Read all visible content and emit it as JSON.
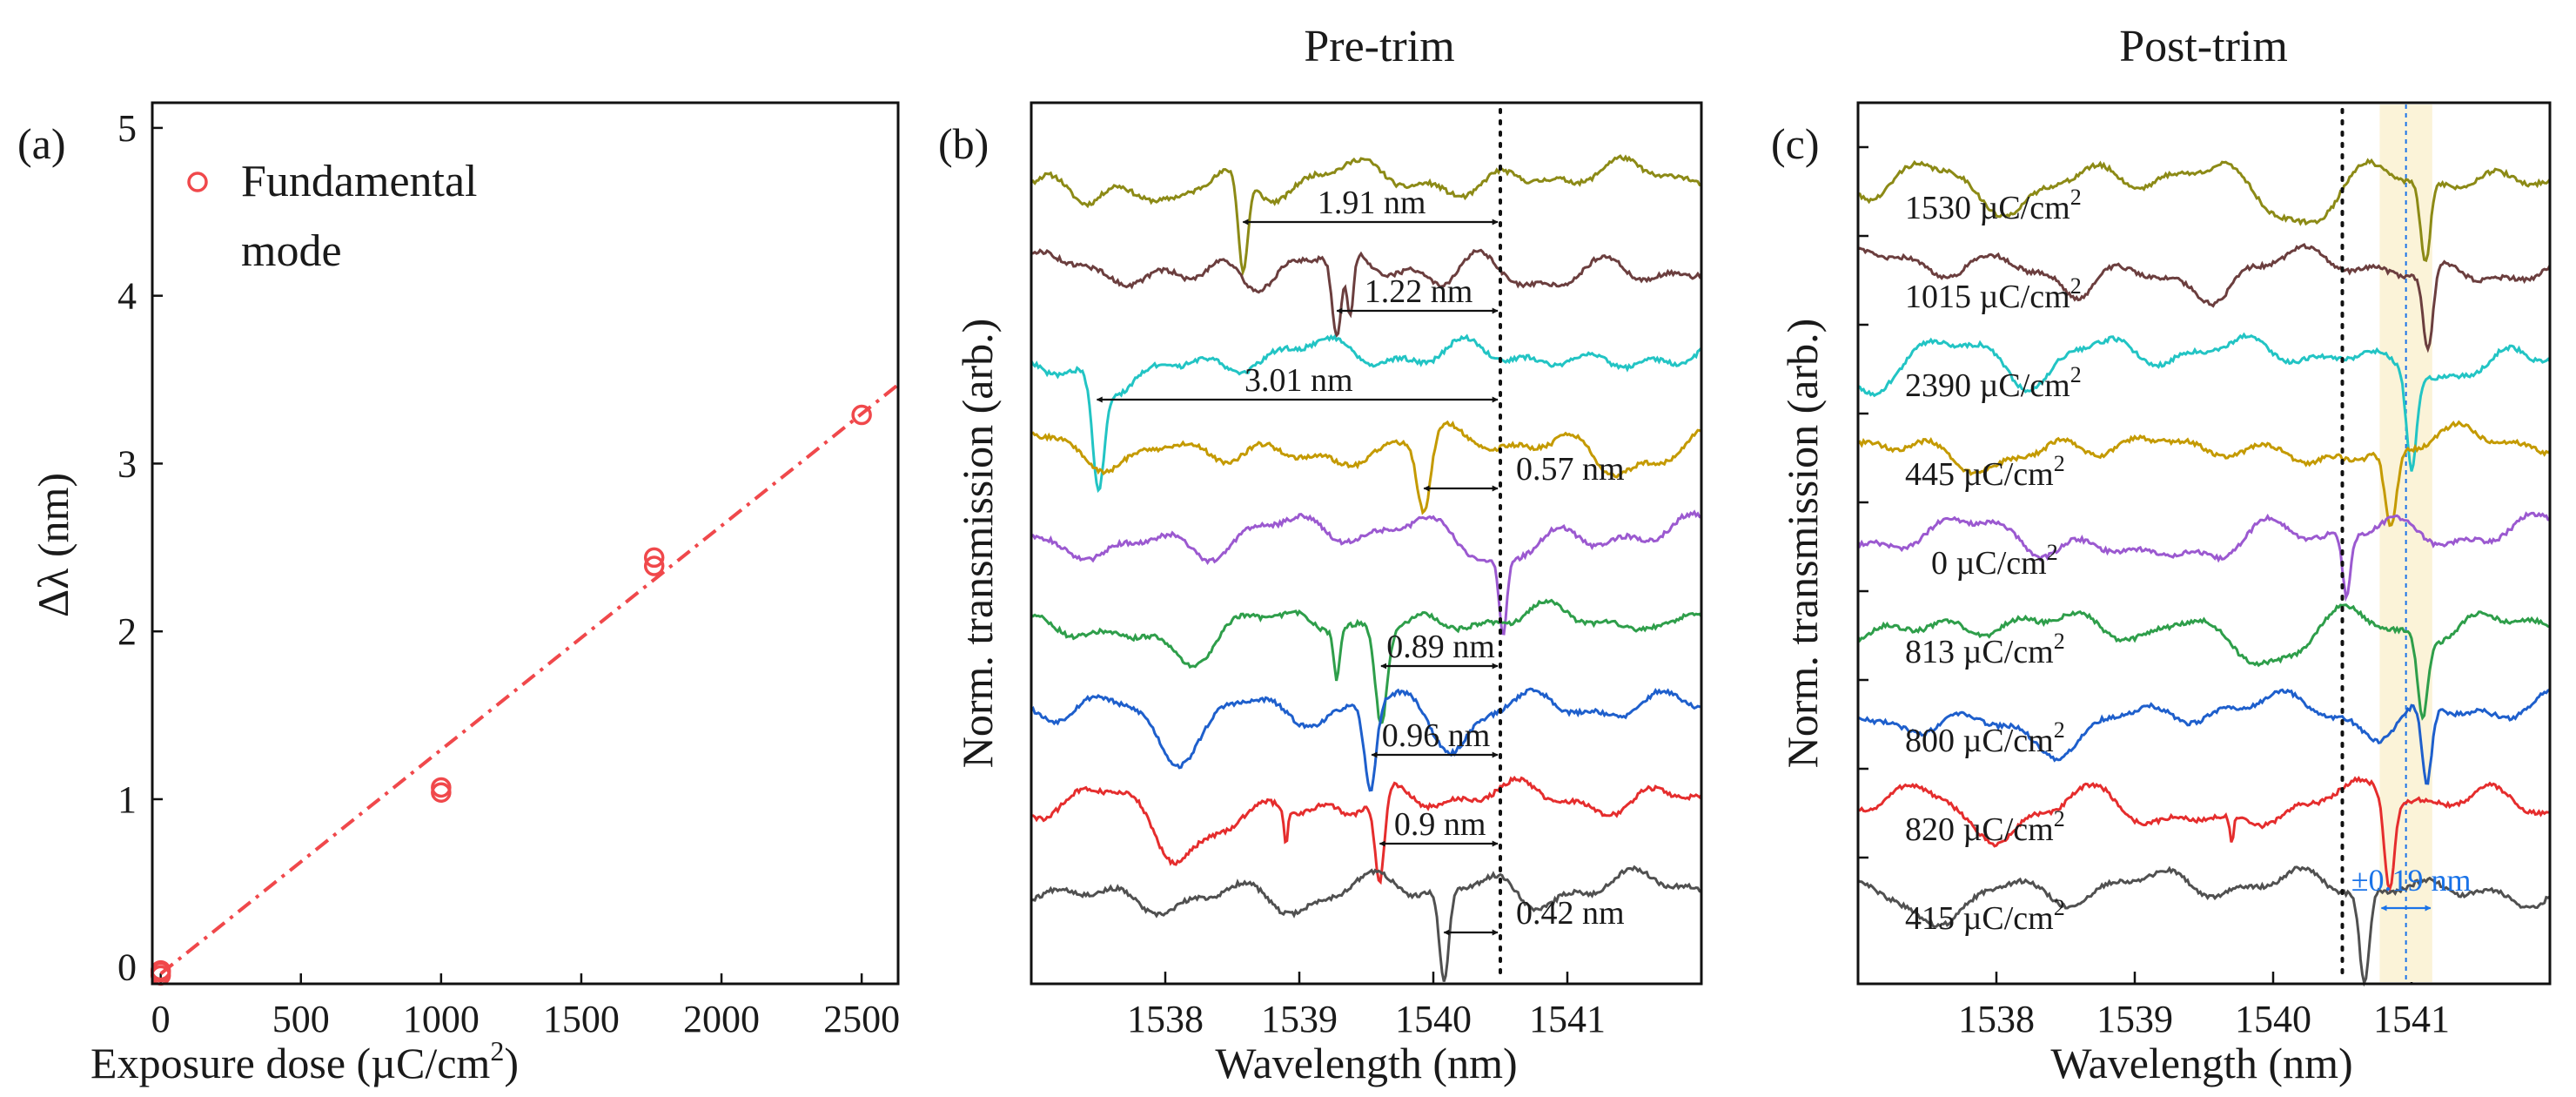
{
  "chart_data": [
    {
      "type": "scatter",
      "panel": "(a)",
      "title": "",
      "xlabel": "Exposure dose (µC/cm",
      "xlabel_sup": "2",
      "xlabel_end": ")",
      "ylabel": "Δλ (nm)",
      "xlim": [
        -30,
        2630
      ],
      "ylim": [
        -0.1,
        5.15
      ],
      "xticks": [
        0,
        500,
        1000,
        1500,
        2000,
        2500
      ],
      "yticks": [
        0,
        1,
        2,
        3,
        4,
        5
      ],
      "legend": {
        "label_line1": "Fundamental",
        "label_line2": "mode",
        "marker_color": "#f0484b"
      },
      "series": [
        {
          "name": "Fundamental mode",
          "color": "#f0484b",
          "points": [
            [
              0,
              -0.02
            ],
            [
              0,
              -0.05
            ],
            [
              0,
              -0.03
            ],
            [
              1000,
              1.04
            ],
            [
              1000,
              1.07
            ],
            [
              1760,
              2.39
            ],
            [
              1760,
              2.44
            ],
            [
              2500,
              3.29
            ]
          ]
        }
      ],
      "fit_line": {
        "x": [
          0,
          2630
        ],
        "y": [
          -0.04,
          3.47
        ],
        "color": "#f0484b",
        "style": "dash-dot"
      }
    },
    {
      "type": "line",
      "panel": "(b)",
      "title": "Pre-trim",
      "xlabel": "Wavelength (nm)",
      "ylabel": "Norm. transmission (arb.)",
      "xlim": [
        1537.0,
        1542.0
      ],
      "xticks": [
        1538,
        1539,
        1540,
        1541
      ],
      "reference_wavelength": 1540.5,
      "series": [
        {
          "color": "#8c8a16",
          "offset": 9.0,
          "dips": [
            [
              1538.58,
              1.1,
              0.05
            ]
          ],
          "shift": "1.91 nm",
          "arrow_from": 1538.58
        },
        {
          "color": "#6b3e3e",
          "offset": 8.0,
          "dips": [
            [
              1539.28,
              0.95,
              0.05
            ],
            [
              1539.38,
              0.75,
              0.035
            ]
          ],
          "shift": "1.22 nm",
          "arrow_from": 1539.28
        },
        {
          "color": "#22c4c4",
          "offset": 7.0,
          "dips": [
            [
              1537.5,
              1.2,
              0.06
            ]
          ],
          "shift": "3.01 nm",
          "arrow_from": 1537.49
        },
        {
          "color": "#c49a00",
          "offset": 6.0,
          "dips": [
            [
              1539.93,
              0.85,
              0.07
            ]
          ],
          "shift": "0.57 nm",
          "arrow_from": 1539.93
        },
        {
          "color": "#9b59d0",
          "offset": 5.0,
          "dips": [
            [
              1540.52,
              0.85,
              0.04
            ]
          ],
          "shift": "",
          "arrow_from": 1540.5
        },
        {
          "color": "#2e9e4a",
          "offset": 4.0,
          "dips": [
            [
              1539.28,
              0.55,
              0.03
            ],
            [
              1539.61,
              1.05,
              0.06
            ]
          ],
          "shift": "0.89 nm",
          "arrow_from": 1539.61
        },
        {
          "color": "#1e5fcc",
          "offset": 3.0,
          "dips": [
            [
              1539.53,
              0.95,
              0.06
            ]
          ],
          "shift": "0.96 nm",
          "arrow_from": 1539.54
        },
        {
          "color": "#e52d2d",
          "offset": 2.0,
          "dips": [
            [
              1538.9,
              0.4,
              0.02
            ],
            [
              1539.6,
              1.05,
              0.05
            ]
          ],
          "shift": "0.9 nm",
          "arrow_from": 1539.6
        },
        {
          "color": "#505050",
          "offset": 1.0,
          "dips": [
            [
              1540.08,
              1.05,
              0.05
            ]
          ],
          "shift": "0.42 nm",
          "arrow_from": 1540.08
        }
      ]
    },
    {
      "type": "line",
      "panel": "(c)",
      "title": "Post-trim",
      "xlabel": "Wavelength (nm)",
      "ylabel": "Norm. transmission (arb.)",
      "xlim": [
        1537.0,
        1542.0
      ],
      "xticks": [
        1538,
        1539,
        1540,
        1541
      ],
      "reference_wavelength": 1540.5,
      "target_wavelength": 1540.96,
      "band": [
        1540.77,
        1541.15
      ],
      "band_label": "±0.19 nm",
      "band_color": "#1a73e8",
      "series": [
        {
          "color": "#8c8a16",
          "offset": 9.0,
          "dips": [
            [
              1541.1,
              0.95,
              0.05
            ]
          ],
          "dose": "1530 µC/cm",
          "sup": "2"
        },
        {
          "color": "#6b3e3e",
          "offset": 8.0,
          "dips": [
            [
              1541.12,
              0.9,
              0.05
            ]
          ],
          "dose": "1015 µC/cm",
          "sup": "2"
        },
        {
          "color": "#22c4c4",
          "offset": 7.0,
          "dips": [
            [
              1541.0,
              1.05,
              0.05
            ]
          ],
          "dose": "2390 µC/cm",
          "sup": "2"
        },
        {
          "color": "#c49a00",
          "offset": 6.0,
          "dips": [
            [
              1540.85,
              0.9,
              0.06
            ]
          ],
          "dose": "445 µC/cm",
          "sup": "2"
        },
        {
          "color": "#9b59d0",
          "offset": 5.0,
          "dips": [
            [
              1540.53,
              0.7,
              0.04
            ]
          ],
          "dose": "0 µC/cm",
          "sup": "2"
        },
        {
          "color": "#2e9e4a",
          "offset": 4.0,
          "dips": [
            [
              1541.08,
              0.9,
              0.05
            ]
          ],
          "dose": "813 µC/cm",
          "sup": "2"
        },
        {
          "color": "#1e5fcc",
          "offset": 3.0,
          "dips": [
            [
              1541.11,
              0.9,
              0.05
            ]
          ],
          "dose": "800 µC/cm",
          "sup": "2"
        },
        {
          "color": "#e52d2d",
          "offset": 2.0,
          "dips": [
            [
              1539.7,
              0.3,
              0.02
            ],
            [
              1540.84,
              1.05,
              0.05
            ]
          ],
          "dose": "820 µC/cm",
          "sup": "2"
        },
        {
          "color": "#505050",
          "offset": 1.0,
          "dips": [
            [
              1540.66,
              1.05,
              0.05
            ]
          ],
          "dose": "415 µC/cm",
          "sup": "2"
        }
      ]
    }
  ]
}
